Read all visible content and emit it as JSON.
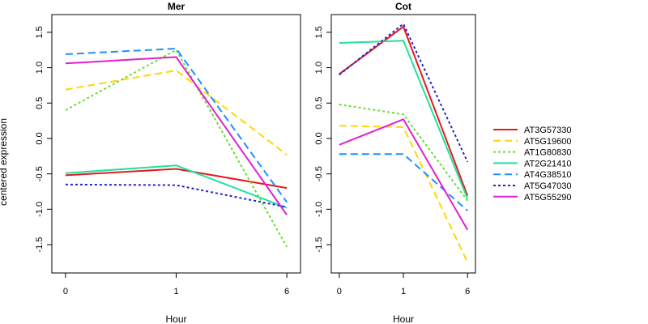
{
  "chart_data": {
    "type": "line",
    "ylabel": "centered expression",
    "xlabel": "Hour",
    "x_tick_labels": [
      "0",
      "1",
      "6"
    ],
    "yticks": [
      -1.5,
      -1.0,
      -0.5,
      0.0,
      0.5,
      1.0,
      1.5
    ],
    "ytick_labels": [
      "-1.5",
      "-1.0",
      "-0.5",
      "0.0",
      "0.5",
      "1.0",
      "1.5"
    ],
    "ylim": [
      -1.9,
      1.75
    ],
    "grid": false,
    "legend_position": "right",
    "series_styles": [
      {
        "name": "AT3G57330",
        "color": "#E41A1C",
        "dash": "solid"
      },
      {
        "name": "AT5G19600",
        "color": "#FFD700",
        "dash": "dashed"
      },
      {
        "name": "AT1G80830",
        "color": "#66E02A",
        "dash": "dotted"
      },
      {
        "name": "AT2G21410",
        "color": "#22E0A0",
        "dash": "solid"
      },
      {
        "name": "AT4G38510",
        "color": "#1E90FF",
        "dash": "dashed"
      },
      {
        "name": "AT5G47030",
        "color": "#2222CC",
        "dash": "dotted"
      },
      {
        "name": "AT5G55290",
        "color": "#E020D0",
        "dash": "solid"
      }
    ],
    "panels": [
      {
        "title": "Mer",
        "series": [
          {
            "name": "AT3G57330",
            "values": [
              -0.52,
              -0.43,
              -0.7
            ]
          },
          {
            "name": "AT5G19600",
            "values": [
              0.69,
              0.96,
              -0.23
            ]
          },
          {
            "name": "AT1G80830",
            "values": [
              0.4,
              1.25,
              -1.53
            ]
          },
          {
            "name": "AT2G21410",
            "values": [
              -0.49,
              -0.38,
              -0.98
            ]
          },
          {
            "name": "AT4G38510",
            "values": [
              1.19,
              1.27,
              -0.9
            ]
          },
          {
            "name": "AT5G47030",
            "values": [
              -0.65,
              -0.66,
              -0.97
            ]
          },
          {
            "name": "AT5G55290",
            "values": [
              1.06,
              1.15,
              -1.08
            ]
          }
        ]
      },
      {
        "title": "Cot",
        "series": [
          {
            "name": "AT3G57330",
            "values": [
              0.91,
              1.58,
              -0.81
            ]
          },
          {
            "name": "AT5G19600",
            "values": [
              0.18,
              0.16,
              -1.75
            ]
          },
          {
            "name": "AT1G80830",
            "values": [
              0.48,
              0.34,
              -0.88
            ]
          },
          {
            "name": "AT2G21410",
            "values": [
              1.35,
              1.38,
              -0.85
            ]
          },
          {
            "name": "AT4G38510",
            "values": [
              -0.22,
              -0.22,
              -1.02
            ]
          },
          {
            "name": "AT5G47030",
            "values": [
              0.9,
              1.62,
              -0.33
            ]
          },
          {
            "name": "AT5G55290",
            "values": [
              -0.09,
              0.27,
              -1.29
            ]
          }
        ]
      }
    ]
  }
}
